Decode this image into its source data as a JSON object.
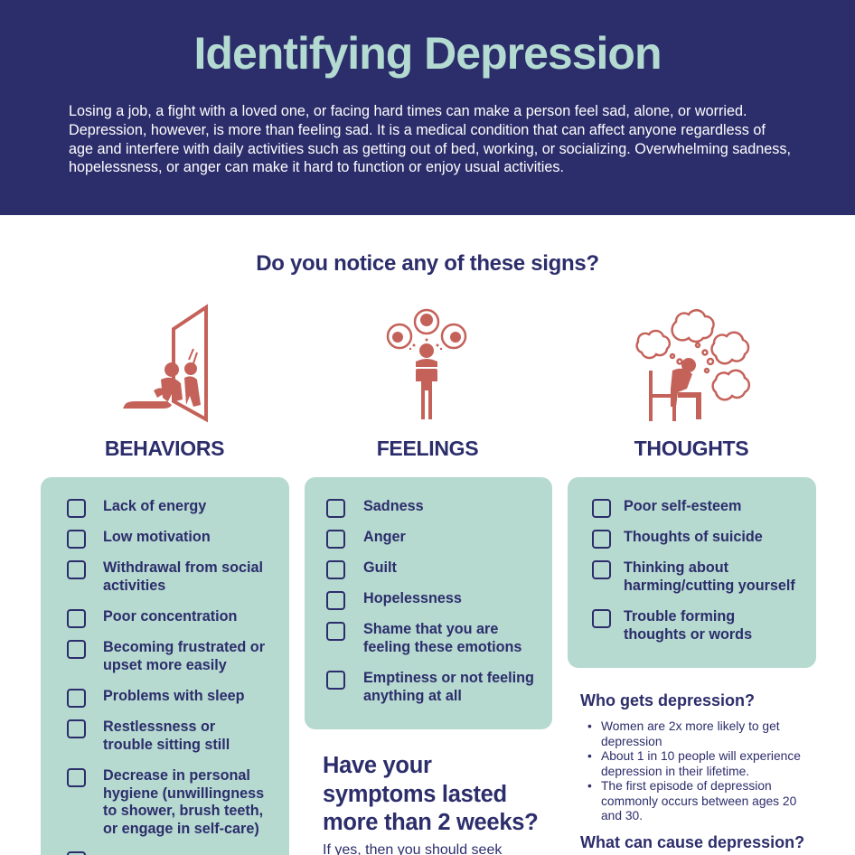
{
  "header": {
    "title": "Identifying Depression",
    "intro": "Losing a job, a fight with a loved one, or facing hard times can make a person feel sad, alone, or worried. Depression, however, is more than feeling sad. It is a medical condition that can affect anyone regardless of age and interfere with daily activities such as getting out of bed, working, or socializing. Overwhelming sadness, hopelessness, or anger can make it hard to function or enjoy usual activities."
  },
  "signs_question": "Do you notice any of these signs?",
  "columns": {
    "behaviors": {
      "title": "BEHAVIORS",
      "icon": "person-sitting-by-mirror-icon",
      "items": [
        "Lack of energy",
        "Low motivation",
        "Withdrawal from social activities",
        "Poor concentration",
        "Becoming frustrated or upset more easily",
        "Problems with sleep",
        "Restlessness or trouble sitting still",
        "Decrease in personal hygiene (unwillingness to shower, brush teeth, or engage in self-care)"
      ]
    },
    "feelings": {
      "title": "FEELINGS",
      "icon": "person-with-emotion-bubbles-icon",
      "items": [
        "Sadness",
        "Anger",
        "Guilt",
        "Hopelessness",
        "Shame that you are feeling these emotions",
        "Emptiness or not feeling anything at all"
      ]
    },
    "thoughts": {
      "title": "THOUGHTS",
      "icon": "person-thinking-clouds-icon",
      "items": [
        "Poor self-esteem",
        "Thoughts of suicide",
        "Thinking about harming/cutting yourself",
        "Trouble forming thoughts or words"
      ]
    }
  },
  "symptoms": {
    "question": "Have your symptoms lasted more than 2 weeks?",
    "answer": "If yes, then you should seek"
  },
  "who": {
    "heading": "Who gets depression?",
    "items": [
      "Women are 2x more likely to get depression",
      "About 1 in 10 people will experience depression in their lifetime.",
      "The first episode of depression commonly occurs between ages 20 and 30."
    ]
  },
  "cause_heading": "What can cause depression?",
  "colors": {
    "navy": "#2c2d6b",
    "mint": "#b4dbd1",
    "panel": "#b6d9d0",
    "icon_red": "#c4625a"
  }
}
